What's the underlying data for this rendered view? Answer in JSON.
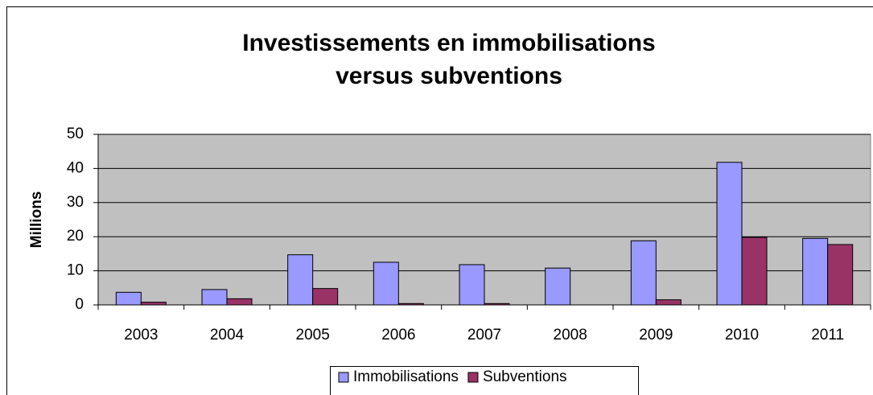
{
  "chart_data": {
    "type": "bar",
    "title": [
      "Investissements en immobilisations",
      "versus subventions"
    ],
    "y_label": "Millions",
    "categories": [
      "2003",
      "2004",
      "2005",
      "2006",
      "2007",
      "2008",
      "2009",
      "2010",
      "2011"
    ],
    "series": [
      {
        "name": "Immobilisations",
        "color": "#9999ff",
        "values": [
          3.7,
          4.5,
          14.7,
          12.5,
          11.8,
          10.8,
          18.8,
          41.8,
          19.5
        ]
      },
      {
        "name": "Subventions",
        "color": "#993366",
        "values": [
          0.8,
          1.8,
          4.8,
          0.4,
          0.4,
          0,
          1.5,
          19.8,
          17.7
        ]
      }
    ],
    "ylim": [
      0,
      50
    ],
    "yticks": [
      0,
      10,
      20,
      30,
      40,
      50
    ],
    "grid": true,
    "legend": "bottom"
  }
}
